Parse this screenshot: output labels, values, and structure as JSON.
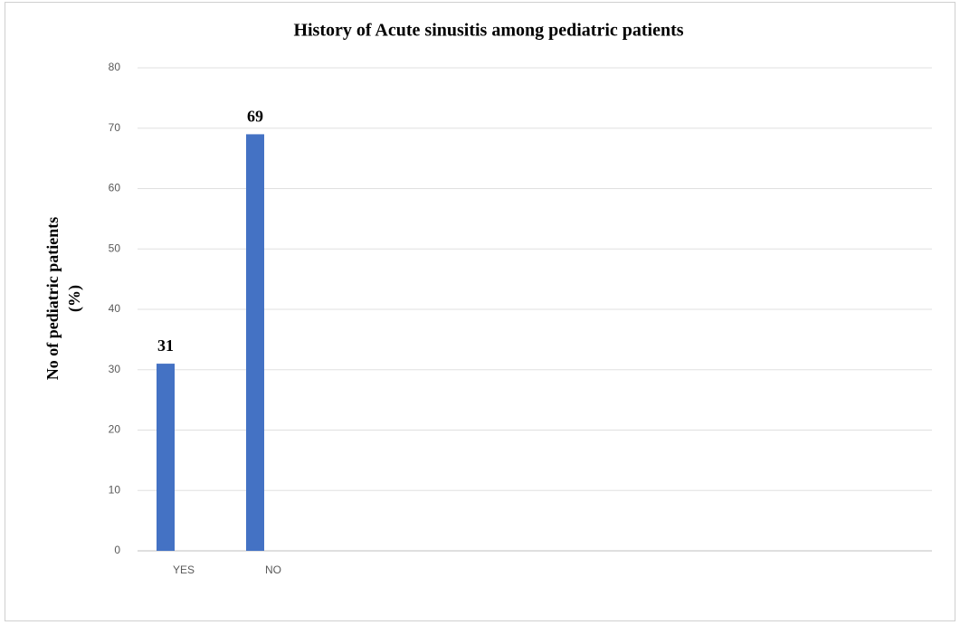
{
  "chart_data": {
    "type": "bar",
    "title": "History of Acute sinusitis among pediatric patients",
    "ylabel": [
      "No of  pediatric patients",
      "(%)"
    ],
    "categories": [
      "YES",
      "NO"
    ],
    "values": [
      31,
      69
    ],
    "color": "#4472c4",
    "ylim": [
      0,
      80
    ],
    "yticks": [
      0,
      10,
      20,
      30,
      40,
      50,
      60,
      70,
      80
    ],
    "grid": true
  }
}
